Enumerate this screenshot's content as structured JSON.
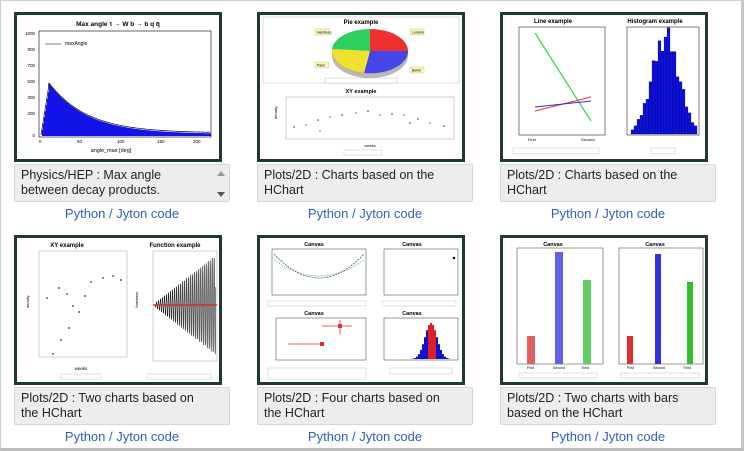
{
  "items": [
    {
      "title": "Physics/HEP : Max angle between decay products.",
      "link": "Python / Jyton code",
      "thumb_title": "Max angle τ → W b → b q q̄",
      "legend": "maxAngle",
      "xlabel": "angle_max [deg]"
    },
    {
      "title": "Plots/2D : Charts based on the HChart",
      "link": "Python / Jyton code",
      "thumb_title": "Pie example",
      "thumb_title2": "XY example",
      "xlabel": "weeks",
      "ylabel": "density",
      "pie_labels": [
        "Hamburg",
        "London",
        "Paris",
        "Berlin"
      ]
    },
    {
      "title": "Plots/2D : Charts based on the HChart",
      "link": "Python / Jyton code",
      "thumb_title": "Line example",
      "thumb_title2": "Histogram example",
      "cat_first": "First",
      "cat_second": "Second"
    },
    {
      "title": "Plots/2D : Two charts based on the HChart",
      "link": "Python / Jyton code",
      "thumb_title": "XY example",
      "thumb_title2": "Function example",
      "xlabel": "weeks",
      "ylabel": "density",
      "ylabel2": "Numbers"
    },
    {
      "title": "Plots/2D : Four charts based on the HChart",
      "link": "Python / Jyton code",
      "thumb_title": "Canvas",
      "thumb_title2": "Canvas",
      "thumb_title3": "Canvas",
      "thumb_title4": "Canvas"
    },
    {
      "title": "Plots/2D : Two charts with bars based on the HChart",
      "link": "Python / Jyton code",
      "thumb_title": "Canvas",
      "thumb_title2": "Canvas",
      "cats": [
        "First",
        "Second",
        "Third"
      ]
    }
  ],
  "colors": {
    "link": "#2f5fbf",
    "frame": "#1f3a34",
    "caption_bg": "#ededed",
    "hist_blue": "#1010e0"
  }
}
